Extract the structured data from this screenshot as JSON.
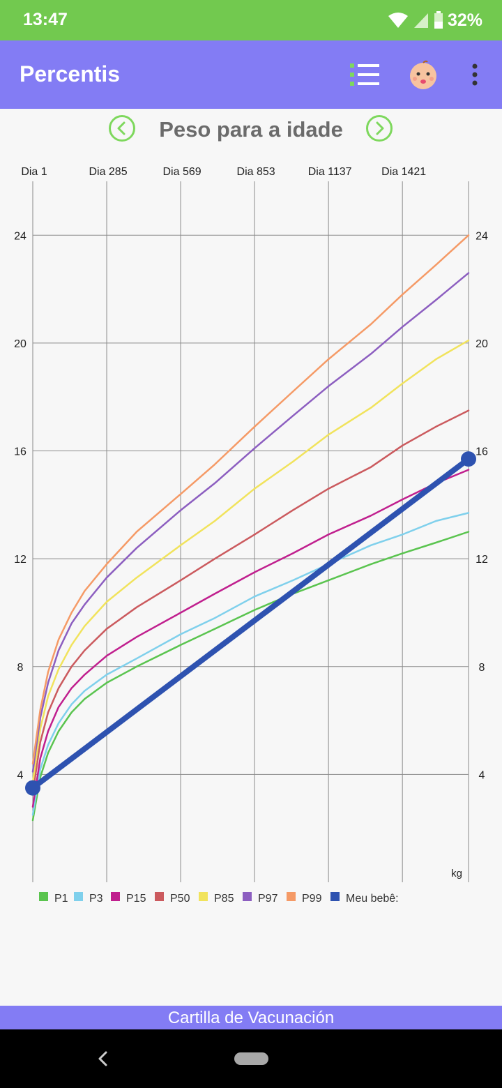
{
  "status_bar": {
    "time": "13:47",
    "battery": "32%"
  },
  "app_bar": {
    "title": "Percentis",
    "icons": [
      "list-icon",
      "baby-face-icon",
      "more-vert-icon"
    ]
  },
  "chart_header": {
    "title": "Peso para a idade",
    "prev_icon": "chevron-left-circle-icon",
    "next_icon": "chevron-right-circle-icon",
    "accent": "#7ed85d"
  },
  "footer": {
    "banner": "Cartilla de Vacunación"
  },
  "chart_data": {
    "type": "line",
    "title": "Peso para a idade",
    "x_unit_label": "Dia",
    "x_ticks": [
      1,
      285,
      569,
      853,
      1137,
      1421
    ],
    "x_tick_labels": [
      "Dia 1",
      "Dia 285",
      "Dia 569",
      "Dia 853",
      "Dia 1137",
      "Dia 1421"
    ],
    "xlim": [
      1,
      1675
    ],
    "ylim": [
      0,
      26
    ],
    "y_ticks": [
      4,
      8,
      12,
      16,
      20,
      24
    ],
    "y_unit_label": "kg",
    "grid": true,
    "legend_position": "bottom-left",
    "x": [
      1,
      30,
      60,
      100,
      150,
      200,
      285,
      400,
      569,
      700,
      853,
      1000,
      1137,
      1300,
      1421,
      1550,
      1675
    ],
    "series": [
      {
        "name": "P1",
        "color": "#5ac44f",
        "width": 2.5,
        "values": [
          2.3,
          3.9,
          4.8,
          5.6,
          6.3,
          6.8,
          7.4,
          8.0,
          8.8,
          9.4,
          10.1,
          10.7,
          11.2,
          11.8,
          12.2,
          12.6,
          13.0
        ]
      },
      {
        "name": "P3",
        "color": "#7fd0ec",
        "width": 2.5,
        "values": [
          2.5,
          4.2,
          5.1,
          5.9,
          6.6,
          7.1,
          7.7,
          8.3,
          9.2,
          9.8,
          10.6,
          11.2,
          11.8,
          12.5,
          12.9,
          13.4,
          13.7
        ]
      },
      {
        "name": "P15",
        "color": "#c01f8e",
        "width": 2.5,
        "values": [
          2.8,
          4.6,
          5.6,
          6.5,
          7.2,
          7.7,
          8.4,
          9.1,
          10.0,
          10.7,
          11.5,
          12.2,
          12.9,
          13.6,
          14.2,
          14.8,
          15.3
        ]
      },
      {
        "name": "P50",
        "color": "#cb5a5e",
        "width": 2.5,
        "values": [
          3.3,
          5.2,
          6.3,
          7.2,
          8.0,
          8.6,
          9.4,
          10.2,
          11.2,
          12.0,
          12.9,
          13.8,
          14.6,
          15.4,
          16.2,
          16.9,
          17.5
        ]
      },
      {
        "name": "P85",
        "color": "#f1e35c",
        "width": 2.5,
        "values": [
          3.7,
          5.7,
          6.9,
          7.9,
          8.8,
          9.5,
          10.4,
          11.3,
          12.5,
          13.4,
          14.6,
          15.6,
          16.6,
          17.6,
          18.5,
          19.4,
          20.1
        ]
      },
      {
        "name": "P97",
        "color": "#8c5ec0",
        "width": 2.5,
        "values": [
          4.1,
          6.1,
          7.4,
          8.6,
          9.6,
          10.3,
          11.3,
          12.4,
          13.8,
          14.8,
          16.1,
          17.3,
          18.4,
          19.6,
          20.6,
          21.6,
          22.6
        ]
      },
      {
        "name": "P99",
        "color": "#f59a66",
        "width": 2.5,
        "values": [
          4.4,
          6.4,
          7.8,
          9.0,
          10.0,
          10.8,
          11.8,
          13.0,
          14.4,
          15.5,
          16.9,
          18.2,
          19.4,
          20.7,
          21.8,
          22.9,
          24.0
        ]
      }
    ],
    "baby": {
      "name": "Meu bebê:",
      "color": "#2e52b0",
      "x": [
        1,
        1675
      ],
      "values": [
        3.5,
        15.7
      ]
    }
  }
}
